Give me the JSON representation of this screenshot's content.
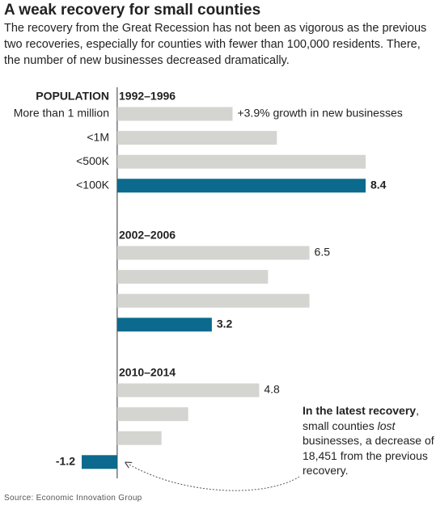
{
  "chart_data": {
    "type": "bar",
    "title": "A weak recovery for small counties",
    "subtitle": "The recovery from the Great Recession has not been as vigorous as the previous two recoveries, especially for counties with fewer than 100,000 residents. There, the number of new businesses decreased dramatically.",
    "category_header": "POPULATION",
    "categories": [
      "More than 1 million",
      "<1M",
      "<500K",
      "<100K"
    ],
    "colors": [
      "#d4d4d0",
      "#d4d4d0",
      "#d4d4d0",
      "#0b6a8d"
    ],
    "groups": [
      {
        "name": "1992–1996",
        "values": [
          3.9,
          5.4,
          8.4,
          8.4
        ],
        "value_labels": [
          "+3.9% growth in new businesses",
          null,
          null,
          "8.4"
        ]
      },
      {
        "name": "2002–2006",
        "values": [
          6.5,
          5.1,
          6.5,
          3.2
        ],
        "value_labels": [
          "6.5",
          null,
          null,
          "3.2"
        ]
      },
      {
        "name": "2010–2014",
        "values": [
          4.8,
          2.4,
          1.5,
          -1.2
        ],
        "value_labels": [
          "4.8",
          null,
          null,
          "-1.2"
        ]
      }
    ],
    "xlim": [
      -1.2,
      8.4
    ],
    "annotation": [
      {
        "text": "In the latest recovery",
        "style": "bold"
      },
      {
        "text": ", small counties "
      },
      {
        "text": "lost",
        "style": "italic"
      },
      {
        "text": " businesses, a decrease of 18,451 from the previous recovery."
      }
    ],
    "source": "Source: Economic Innovation Group"
  }
}
